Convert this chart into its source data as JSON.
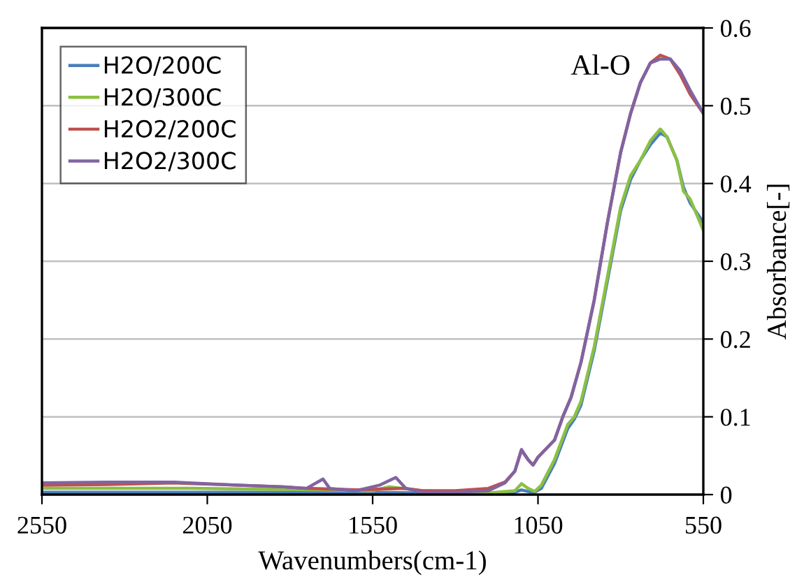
{
  "chart_data": {
    "type": "line",
    "xlabel": "Wavenumbers(cm-1)",
    "ylabel": "Absorbance[-]",
    "xlim": [
      2550,
      550
    ],
    "xticks": [
      2550,
      2050,
      1550,
      1050,
      550
    ],
    "ylim": [
      0,
      0.6
    ],
    "yticks": [
      0,
      0.1,
      0.2,
      0.3,
      0.4,
      0.5,
      0.6
    ],
    "grid": "y",
    "legend": "top left",
    "marker": "none",
    "line_style": "solid",
    "annotations": [
      "Al-O"
    ],
    "series": [
      {
        "name": "H2O/200C",
        "color": "#4a7ebb",
        "x": [
          2550,
          2300,
          2100,
          1900,
          1700,
          1550,
          1400,
          1200,
          1120,
          1100,
          1080,
          1060,
          1040,
          1000,
          960,
          940,
          920,
          880,
          840,
          800,
          770,
          740,
          710,
          680,
          660,
          630,
          610,
          590,
          550
        ],
        "values": [
          0.003,
          0.003,
          0.003,
          0.003,
          0.003,
          0.003,
          0.002,
          0.001,
          0.003,
          0.006,
          0.004,
          0.003,
          0.008,
          0.04,
          0.085,
          0.097,
          0.115,
          0.185,
          0.275,
          0.365,
          0.405,
          0.43,
          0.45,
          0.465,
          0.46,
          0.43,
          0.395,
          0.375,
          0.35
        ]
      },
      {
        "name": "H2O/300C",
        "color": "#8cc043",
        "x": [
          2550,
          2300,
          2100,
          1900,
          1700,
          1550,
          1500,
          1400,
          1200,
          1120,
          1100,
          1080,
          1060,
          1040,
          1000,
          960,
          940,
          920,
          880,
          840,
          800,
          770,
          740,
          710,
          680,
          660,
          630,
          610,
          590,
          550
        ],
        "values": [
          0.008,
          0.008,
          0.008,
          0.007,
          0.006,
          0.005,
          0.01,
          0.005,
          0.002,
          0.005,
          0.014,
          0.008,
          0.004,
          0.012,
          0.045,
          0.09,
          0.1,
          0.12,
          0.19,
          0.28,
          0.37,
          0.41,
          0.43,
          0.455,
          0.47,
          0.46,
          0.43,
          0.39,
          0.38,
          0.34
        ]
      },
      {
        "name": "H2O2/200C",
        "color": "#c0504d",
        "x": [
          2550,
          2350,
          2150,
          1950,
          1820,
          1750,
          1600,
          1450,
          1400,
          1300,
          1200,
          1150,
          1120,
          1100,
          1080,
          1065,
          1050,
          1000,
          975,
          950,
          920,
          880,
          840,
          800,
          770,
          740,
          710,
          680,
          650,
          620,
          590,
          550
        ],
        "values": [
          0.012,
          0.013,
          0.015,
          0.012,
          0.01,
          0.008,
          0.006,
          0.008,
          0.005,
          0.005,
          0.008,
          0.016,
          0.03,
          0.057,
          0.045,
          0.038,
          0.048,
          0.07,
          0.1,
          0.125,
          0.17,
          0.25,
          0.35,
          0.44,
          0.49,
          0.53,
          0.555,
          0.565,
          0.56,
          0.54,
          0.515,
          0.49
        ]
      },
      {
        "name": "H2O2/300C",
        "color": "#8064a2",
        "x": [
          2550,
          2350,
          2150,
          1950,
          1820,
          1750,
          1700,
          1680,
          1600,
          1530,
          1480,
          1450,
          1400,
          1300,
          1200,
          1150,
          1120,
          1100,
          1080,
          1065,
          1050,
          1000,
          975,
          950,
          920,
          880,
          840,
          800,
          770,
          740,
          710,
          680,
          650,
          620,
          590,
          550
        ],
        "values": [
          0.015,
          0.016,
          0.016,
          0.012,
          0.01,
          0.008,
          0.02,
          0.008,
          0.005,
          0.012,
          0.022,
          0.008,
          0.003,
          0.003,
          0.005,
          0.015,
          0.03,
          0.058,
          0.045,
          0.038,
          0.048,
          0.07,
          0.1,
          0.125,
          0.17,
          0.25,
          0.35,
          0.44,
          0.49,
          0.53,
          0.555,
          0.56,
          0.56,
          0.545,
          0.52,
          0.49
        ]
      }
    ]
  }
}
